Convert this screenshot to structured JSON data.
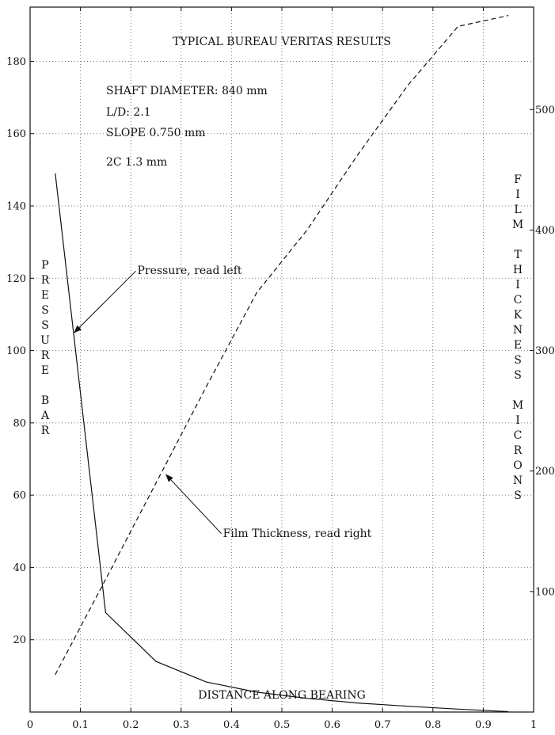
{
  "chart_data": {
    "type": "line",
    "title": "TYPICAL BUREAU VERITAS RESULTS",
    "xlabel": "DISTANCE ALONG BEARING",
    "ylabel_left": "PRESSURE BAR",
    "ylabel_right": "FILM THICKNESS MICRONS",
    "xlim": [
      0,
      1
    ],
    "ylim_left": [
      0,
      195
    ],
    "ylim_right": [
      0,
      585
    ],
    "x_ticks": [
      0,
      0.1,
      0.2,
      0.3,
      0.4,
      0.5,
      0.6,
      0.7,
      0.8,
      0.9,
      1
    ],
    "x_tick_labels": [
      "0",
      "0.1",
      "0.2",
      "0.3",
      "0.4",
      "0.5",
      "0.6",
      "0.7",
      "0.8",
      "0.9",
      "1"
    ],
    "y_left_ticks": [
      20,
      40,
      60,
      80,
      100,
      120,
      140,
      160,
      180
    ],
    "y_left_tick_labels": [
      "20",
      "40",
      "60",
      "80",
      "100",
      "120",
      "140",
      "160",
      "180"
    ],
    "y_right_ticks": [
      100,
      200,
      300,
      400,
      500
    ],
    "y_right_tick_labels": [
      "100",
      "200",
      "300",
      "400",
      "500"
    ],
    "grid": true,
    "info_lines": [
      "SHAFT DIAMETER: 840 mm",
      "L/D: 2.1",
      "SLOPE 0.750 mm",
      "2C 1.3 mm"
    ],
    "series": [
      {
        "name": "Pressure, read left",
        "axis": "left",
        "style": "solid",
        "x": [
          0.05,
          0.15,
          0.25,
          0.35,
          0.45,
          0.55,
          0.65,
          0.75,
          0.85,
          0.95
        ],
        "y": [
          149,
          27.5,
          14,
          8.3,
          5.5,
          3.8,
          2.5,
          1.6,
          0.8,
          0.1
        ]
      },
      {
        "name": "Film Thickness, read right",
        "axis": "right",
        "style": "dashed",
        "x": [
          0.05,
          0.15,
          0.25,
          0.35,
          0.45,
          0.55,
          0.65,
          0.75,
          0.85,
          0.95
        ],
        "y": [
          31,
          110,
          190,
          270,
          348,
          400,
          462,
          520,
          569,
          578
        ]
      }
    ],
    "annotations": [
      {
        "text": "Pressure, read left",
        "target_series": 0,
        "target": [
          0.088,
          105
        ],
        "label_pos": [
          0.21,
          122
        ]
      },
      {
        "text": "Film Thickness, read right",
        "target_series": 1,
        "target": [
          0.27,
          197
        ],
        "label_pos": [
          0.38,
          148
        ]
      }
    ]
  }
}
